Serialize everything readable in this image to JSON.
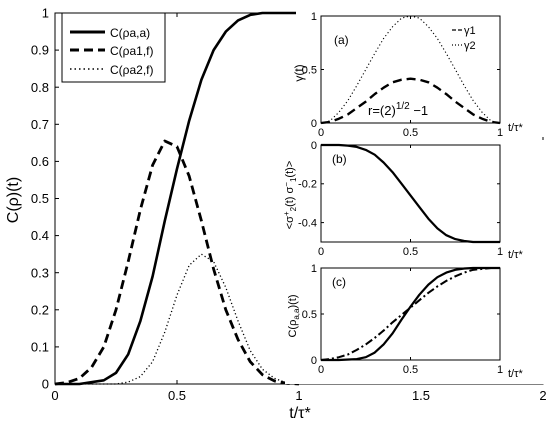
{
  "chart_data": [
    {
      "panel": "main",
      "type": "line",
      "ylabel": "C(ρ)(t)",
      "xlabel": "t/τ*",
      "xlim": [
        0,
        2
      ],
      "ylim": [
        0,
        1
      ],
      "xticks": [
        "0",
        "0.5",
        "1",
        "1.5",
        "2"
      ],
      "yticks": [
        "0",
        "0.1",
        "0.2",
        "0.3",
        "0.4",
        "0.5",
        "0.6",
        "0.7",
        "0.8",
        "0.9",
        "1"
      ],
      "legend_position": "top-left",
      "series": [
        {
          "name": "C(ρa,a)",
          "style": "solid",
          "x": [
            0,
            0.1,
            0.2,
            0.25,
            0.3,
            0.35,
            0.4,
            0.45,
            0.5,
            0.55,
            0.6,
            0.65,
            0.7,
            0.75,
            0.8,
            0.85,
            0.9,
            1.0,
            1.5,
            2.0
          ],
          "y": [
            0,
            0,
            0.01,
            0.03,
            0.08,
            0.17,
            0.29,
            0.44,
            0.58,
            0.71,
            0.82,
            0.9,
            0.95,
            0.98,
            0.995,
            1,
            1,
            1,
            1,
            1
          ]
        },
        {
          "name": "C(ρa1,f)",
          "style": "dashed",
          "x": [
            0,
            0.05,
            0.1,
            0.15,
            0.2,
            0.25,
            0.3,
            0.35,
            0.4,
            0.45,
            0.5,
            0.55,
            0.6,
            0.65,
            0.7,
            0.75,
            0.8,
            0.85,
            0.9,
            0.95,
            1.0
          ],
          "y": [
            0,
            0.004,
            0.015,
            0.045,
            0.1,
            0.2,
            0.33,
            0.47,
            0.59,
            0.655,
            0.64,
            0.56,
            0.44,
            0.31,
            0.2,
            0.12,
            0.06,
            0.025,
            0.008,
            0.002,
            0
          ]
        },
        {
          "name": "C(ρa2,f)",
          "style": "dotted",
          "x": [
            0,
            0.25,
            0.3,
            0.35,
            0.4,
            0.45,
            0.5,
            0.55,
            0.6,
            0.65,
            0.7,
            0.75,
            0.8,
            0.85,
            0.9,
            0.95,
            1.0
          ],
          "y": [
            0,
            0,
            0.005,
            0.02,
            0.06,
            0.14,
            0.24,
            0.32,
            0.35,
            0.33,
            0.26,
            0.17,
            0.09,
            0.04,
            0.015,
            0.003,
            0
          ]
        }
      ]
    },
    {
      "panel": "a",
      "label": "(a)",
      "type": "line",
      "ylabel": "γ(t)",
      "xlabel": "t/τ*",
      "xlim": [
        0,
        1
      ],
      "ylim": [
        0,
        1
      ],
      "xticks": [
        "0",
        "0.5",
        "1"
      ],
      "yticks": [
        "0",
        "0.5",
        "1"
      ],
      "annotation": "r=(2)1/2 −1",
      "series": [
        {
          "name": "γ1",
          "style": "dashed",
          "x": [
            0,
            0.05,
            0.1,
            0.15,
            0.2,
            0.25,
            0.3,
            0.35,
            0.4,
            0.45,
            0.5,
            0.55,
            0.6,
            0.65,
            0.7,
            0.75,
            0.8,
            0.85,
            0.9,
            0.95,
            1.0
          ],
          "y": [
            0,
            0.01,
            0.04,
            0.08,
            0.14,
            0.2,
            0.27,
            0.33,
            0.38,
            0.405,
            0.414,
            0.405,
            0.38,
            0.33,
            0.27,
            0.2,
            0.14,
            0.08,
            0.04,
            0.01,
            0
          ]
        },
        {
          "name": "γ2",
          "style": "dotted",
          "x": [
            0,
            0.05,
            0.1,
            0.15,
            0.2,
            0.25,
            0.3,
            0.35,
            0.4,
            0.45,
            0.5,
            0.55,
            0.6,
            0.65,
            0.7,
            0.75,
            0.8,
            0.85,
            0.9,
            0.95,
            1.0
          ],
          "y": [
            0,
            0.02,
            0.1,
            0.21,
            0.35,
            0.5,
            0.65,
            0.79,
            0.9,
            0.98,
            1,
            0.98,
            0.9,
            0.79,
            0.65,
            0.5,
            0.35,
            0.21,
            0.1,
            0.02,
            0
          ]
        }
      ]
    },
    {
      "panel": "b",
      "label": "(b)",
      "type": "line",
      "ylabel": "<σ2+(t) σ1−(t)>",
      "xlabel": "t/τ*",
      "xlim": [
        0,
        1
      ],
      "ylim": [
        -0.5,
        0
      ],
      "xticks": [
        "0",
        "0.5",
        "1"
      ],
      "yticks": [
        "0",
        "-0.2",
        "-0.4"
      ],
      "series": [
        {
          "name": "",
          "style": "solid",
          "x": [
            0,
            0.1,
            0.15,
            0.2,
            0.25,
            0.3,
            0.35,
            0.4,
            0.45,
            0.5,
            0.55,
            0.6,
            0.65,
            0.7,
            0.75,
            0.8,
            0.85,
            0.9,
            1.0
          ],
          "y": [
            0,
            0,
            -0.003,
            -0.01,
            -0.025,
            -0.05,
            -0.09,
            -0.14,
            -0.2,
            -0.26,
            -0.32,
            -0.38,
            -0.43,
            -0.465,
            -0.485,
            -0.495,
            -0.5,
            -0.5,
            -0.5
          ]
        }
      ]
    },
    {
      "panel": "c",
      "label": "(c)",
      "type": "line",
      "ylabel": "C(ρa,a)(t)",
      "xlabel": "t/τ*",
      "xlim": [
        0,
        1
      ],
      "ylim": [
        0,
        1
      ],
      "xticks": [
        "0",
        "0.5",
        "1"
      ],
      "yticks": [
        "0",
        "0.5",
        "1"
      ],
      "series": [
        {
          "name": "",
          "style": "solid",
          "x": [
            0,
            0.1,
            0.2,
            0.25,
            0.3,
            0.35,
            0.4,
            0.45,
            0.5,
            0.55,
            0.6,
            0.65,
            0.7,
            0.75,
            0.8,
            0.85,
            0.9,
            1.0
          ],
          "y": [
            0,
            0,
            0.01,
            0.03,
            0.08,
            0.17,
            0.29,
            0.44,
            0.58,
            0.71,
            0.82,
            0.9,
            0.95,
            0.98,
            0.995,
            1,
            1,
            1
          ]
        },
        {
          "name": "",
          "style": "dashdot",
          "x": [
            0,
            0.05,
            0.1,
            0.15,
            0.2,
            0.25,
            0.3,
            0.35,
            0.4,
            0.45,
            0.5,
            0.55,
            0.6,
            0.65,
            0.7,
            0.75,
            0.8,
            0.85,
            0.9,
            0.95,
            1.0
          ],
          "y": [
            0,
            0.01,
            0.03,
            0.06,
            0.11,
            0.17,
            0.24,
            0.32,
            0.41,
            0.49,
            0.57,
            0.65,
            0.73,
            0.8,
            0.86,
            0.91,
            0.95,
            0.98,
            0.99,
            1,
            1
          ]
        }
      ]
    }
  ]
}
